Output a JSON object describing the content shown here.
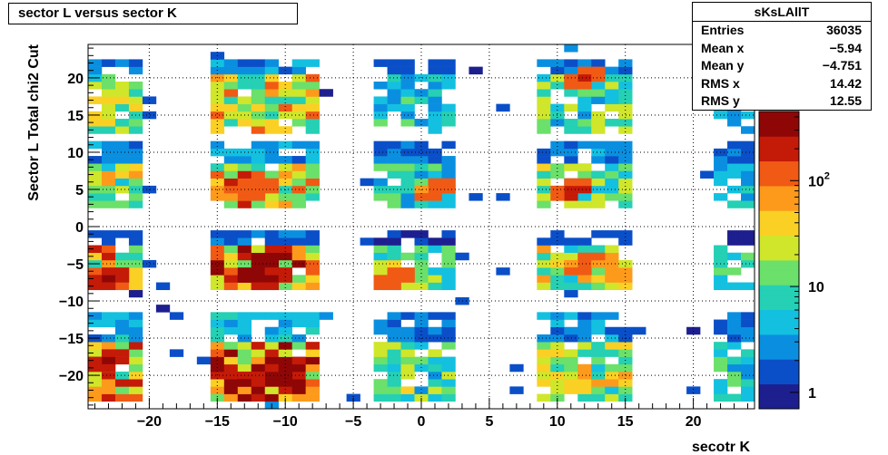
{
  "chart_data": {
    "type": "heatmap",
    "title": "sector L versus sector K",
    "xlabel": "secotr K",
    "ylabel": "Sector L  Total chi2 Cut",
    "xlim": [
      -24.5,
      24.5
    ],
    "ylim": [
      -24.5,
      24.5
    ],
    "z_log": true,
    "z_range": [
      0.7,
      450
    ],
    "grid": true,
    "x_ticks": [
      "−20",
      "−15",
      "−10",
      "−5",
      "0",
      "5",
      "10",
      "15",
      "20"
    ],
    "y_ticks": [
      "−20",
      "−15",
      "−10",
      "−5",
      "0",
      "5",
      "10",
      "15",
      "20"
    ],
    "z_ticks": [
      "1",
      "10",
      "10^2"
    ],
    "colormap": [
      "#1d1f8f",
      "#0a4fc8",
      "#0a8fe0",
      "#13c0e0",
      "#25d0b4",
      "#6be06a",
      "#d0e62a",
      "#fbd024",
      "#fd9a1c",
      "#f05a14",
      "#c41a08",
      "#8f0606"
    ],
    "peak_bins": [
      [
        -12,
        -20,
        420
      ],
      [
        -11,
        -20,
        400
      ],
      [
        -12,
        -6,
        410
      ],
      [
        -11,
        -7,
        380
      ],
      [
        -23,
        -18,
        300
      ],
      [
        -23,
        -7,
        280
      ],
      [
        12,
        20,
        180
      ],
      [
        11,
        5,
        190
      ],
      [
        -2,
        -7,
        150
      ],
      [
        1,
        5,
        140
      ],
      [
        12,
        -5,
        120
      ],
      [
        -12,
        5,
        150
      ]
    ]
  },
  "stats": {
    "name": "sKsLAllT",
    "rows": [
      {
        "label": "Entries",
        "value": "36035"
      },
      {
        "label": "Mean x",
        "value": "−5.94"
      },
      {
        "label": "Mean y",
        "value": "−4.751"
      },
      {
        "label": "RMS x",
        "value": "14.42"
      },
      {
        "label": "RMS y",
        "value": "12.55"
      }
    ]
  }
}
